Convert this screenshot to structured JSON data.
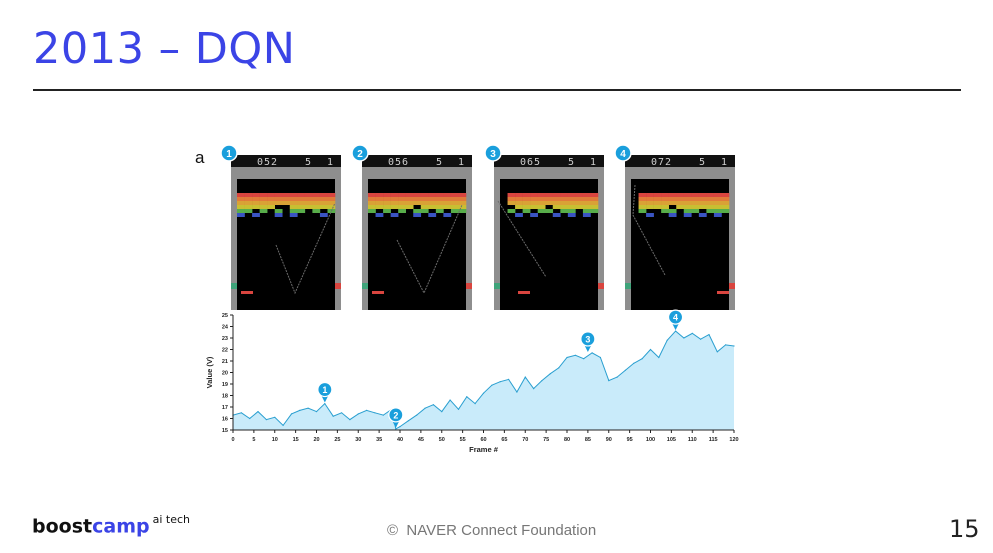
{
  "slide": {
    "title": "2013 – DQN",
    "page_number": "15",
    "copyright_mark": "©",
    "copyright_text": "NAVER Connect Foundation"
  },
  "logo": {
    "word_boost": "boost",
    "word_camp": "camp",
    "superscript": "ai tech",
    "brand_color": "#3b44e6"
  },
  "figure": {
    "panel_letter": "a",
    "screens": [
      {
        "marker": "1",
        "score": "052",
        "lives": "5",
        "player": "1"
      },
      {
        "marker": "2",
        "score": "056",
        "lives": "5",
        "player": "1"
      },
      {
        "marker": "3",
        "score": "065",
        "lives": "5",
        "player": "1"
      },
      {
        "marker": "4",
        "score": "072",
        "lives": "5",
        "player": "1"
      }
    ]
  },
  "chart_data": {
    "type": "area",
    "xlabel": "Frame #",
    "ylabel": "Value (V)",
    "xlim": [
      0,
      120
    ],
    "ylim": [
      15,
      25
    ],
    "x_ticks": [
      0,
      5,
      10,
      15,
      20,
      25,
      30,
      35,
      40,
      45,
      50,
      55,
      60,
      65,
      70,
      75,
      80,
      85,
      90,
      95,
      100,
      105,
      110,
      115,
      120
    ],
    "y_ticks": [
      15,
      16,
      17,
      18,
      19,
      20,
      21,
      22,
      23,
      24,
      25
    ],
    "fill_color": "#c9ebfa",
    "line_color": "#2a9fd0",
    "x": [
      0,
      2,
      4,
      6,
      8,
      10,
      12,
      14,
      16,
      18,
      20,
      22,
      24,
      26,
      28,
      30,
      32,
      34,
      36,
      38,
      39,
      40,
      42,
      44,
      46,
      48,
      50,
      52,
      54,
      56,
      58,
      60,
      62,
      64,
      66,
      68,
      70,
      72,
      74,
      76,
      78,
      80,
      82,
      84,
      86,
      88,
      90,
      92,
      94,
      96,
      98,
      100,
      102,
      104,
      106,
      108,
      110,
      112,
      114,
      116,
      118,
      120
    ],
    "values": [
      16.3,
      16.5,
      16.0,
      16.6,
      15.9,
      16.1,
      15.4,
      16.4,
      16.7,
      16.9,
      16.6,
      17.3,
      16.2,
      16.5,
      15.9,
      16.4,
      16.7,
      16.5,
      16.3,
      16.8,
      15.1,
      15.3,
      15.8,
      16.3,
      16.9,
      17.2,
      16.6,
      17.6,
      16.8,
      17.9,
      17.3,
      18.2,
      18.9,
      19.2,
      19.4,
      18.3,
      19.6,
      18.6,
      19.3,
      19.9,
      20.4,
      21.3,
      21.5,
      21.2,
      21.7,
      21.3,
      19.3,
      19.6,
      20.2,
      20.8,
      21.2,
      22.0,
      21.3,
      22.8,
      23.6,
      23.0,
      23.4,
      22.9,
      23.3,
      21.8,
      22.4,
      22.3
    ],
    "markers": [
      {
        "label": "1",
        "x": 22,
        "y": 17.3
      },
      {
        "label": "2",
        "x": 39,
        "y": 15.1
      },
      {
        "label": "3",
        "x": 85,
        "y": 21.7
      },
      {
        "label": "4",
        "x": 106,
        "y": 23.6
      }
    ]
  }
}
